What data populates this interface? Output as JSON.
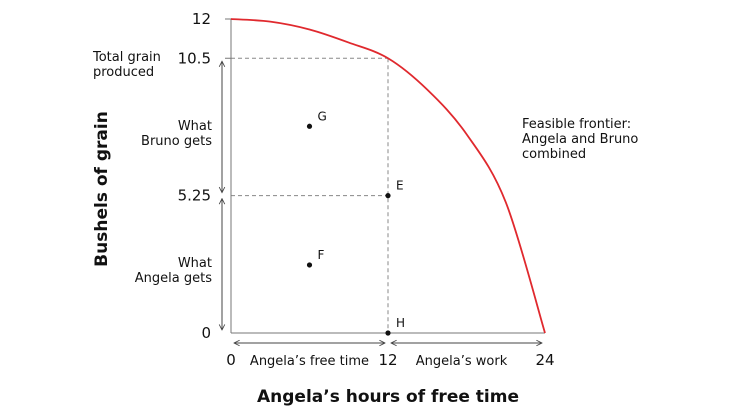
{
  "chart_data": {
    "type": "line",
    "xlabel": "Angela’s hours of free time",
    "ylabel": "Bushels of grain",
    "xlim": [
      0,
      24
    ],
    "ylim": [
      0,
      12
    ],
    "x_ticks": [
      "0",
      "12",
      "24"
    ],
    "y_ticks": [
      "0",
      "5.25",
      "10.5",
      "12"
    ],
    "grid": false,
    "series": [
      {
        "name": "Feasible frontier: Angela and Bruno combined",
        "color": "#e0292e",
        "x": [
          0,
          3,
          6,
          9,
          12,
          15,
          18,
          21,
          24
        ],
        "y": [
          12,
          11.9,
          11.6,
          11.1,
          10.5,
          9.3,
          7.6,
          5.0,
          0
        ]
      }
    ],
    "points": [
      {
        "label": "G",
        "x": 6,
        "y": 7.9
      },
      {
        "label": "E",
        "x": 12,
        "y": 5.25
      },
      {
        "label": "F",
        "x": 6,
        "y": 2.6
      },
      {
        "label": "H",
        "x": 12,
        "y": 0
      }
    ],
    "reference_lines": {
      "y_values": [
        10.5,
        5.25
      ],
      "x_values": [
        12
      ]
    },
    "annotations": {
      "total_grain": "Total grain\nproduced",
      "bruno_gets": "What\nBruno gets",
      "angela_gets": "What\nAngela gets",
      "free_time": "Angela’s free time",
      "work": "Angela’s work",
      "frontier": "Feasible frontier:\nAngela and Bruno\ncombined"
    }
  }
}
